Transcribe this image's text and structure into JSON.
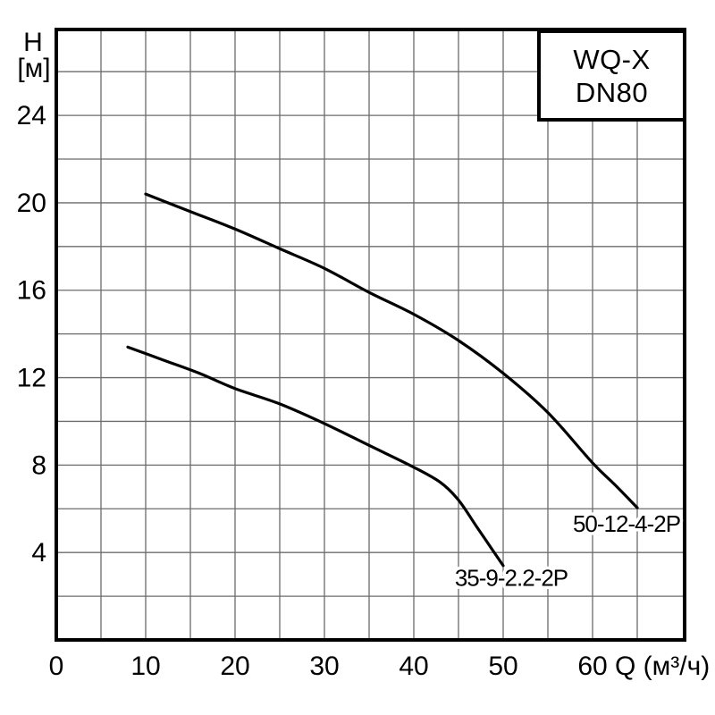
{
  "chart_data": {
    "type": "line",
    "title": "",
    "legend": {
      "position": "top-right",
      "lines": [
        "WQ-X",
        "DN80"
      ]
    },
    "x_axis": {
      "label": "Q (м³/ч)",
      "ticks": [
        0,
        10,
        20,
        30,
        40,
        50,
        60
      ],
      "range": [
        0,
        70.3
      ],
      "grid_step": 5,
      "grid_min": 5,
      "grid_max": 65,
      "grid": true
    },
    "y_axis": {
      "label": "H",
      "unit_label": "[м]",
      "ticks": [
        4,
        8,
        12,
        16,
        20,
        24
      ],
      "range": [
        0,
        27.93
      ],
      "grid_step": 2,
      "grid_min": 2,
      "grid_max": 26,
      "grid": true
    },
    "series": [
      {
        "name": "50-12-4-2P",
        "points": [
          [
            10,
            20.4
          ],
          [
            15,
            19.6
          ],
          [
            20,
            18.8
          ],
          [
            25,
            17.9
          ],
          [
            30,
            17.0
          ],
          [
            35,
            15.9
          ],
          [
            40,
            14.9
          ],
          [
            45,
            13.7
          ],
          [
            50,
            12.2
          ],
          [
            55,
            10.4
          ],
          [
            60,
            8.1
          ],
          [
            62.5,
            7.1
          ],
          [
            65,
            6.05
          ]
        ],
        "label_at": [
          63.8,
          4.95
        ]
      },
      {
        "name": "35-9-2.2-2P",
        "points": [
          [
            8,
            13.4
          ],
          [
            12,
            12.8
          ],
          [
            16,
            12.2
          ],
          [
            20,
            11.5
          ],
          [
            25,
            10.8
          ],
          [
            30,
            9.9
          ],
          [
            35,
            8.9
          ],
          [
            40,
            7.9
          ],
          [
            43,
            7.2
          ],
          [
            45,
            6.4
          ],
          [
            47,
            5.2
          ],
          [
            48.5,
            4.3
          ],
          [
            50,
            3.4
          ]
        ],
        "label_at": [
          50.9,
          2.48
        ]
      }
    ]
  },
  "colors": {
    "background": "#ffffff",
    "grid": "#6b6b6b",
    "frame": "#000000",
    "curve": "#000000",
    "text": "#000000",
    "legend_border": "#000000"
  }
}
